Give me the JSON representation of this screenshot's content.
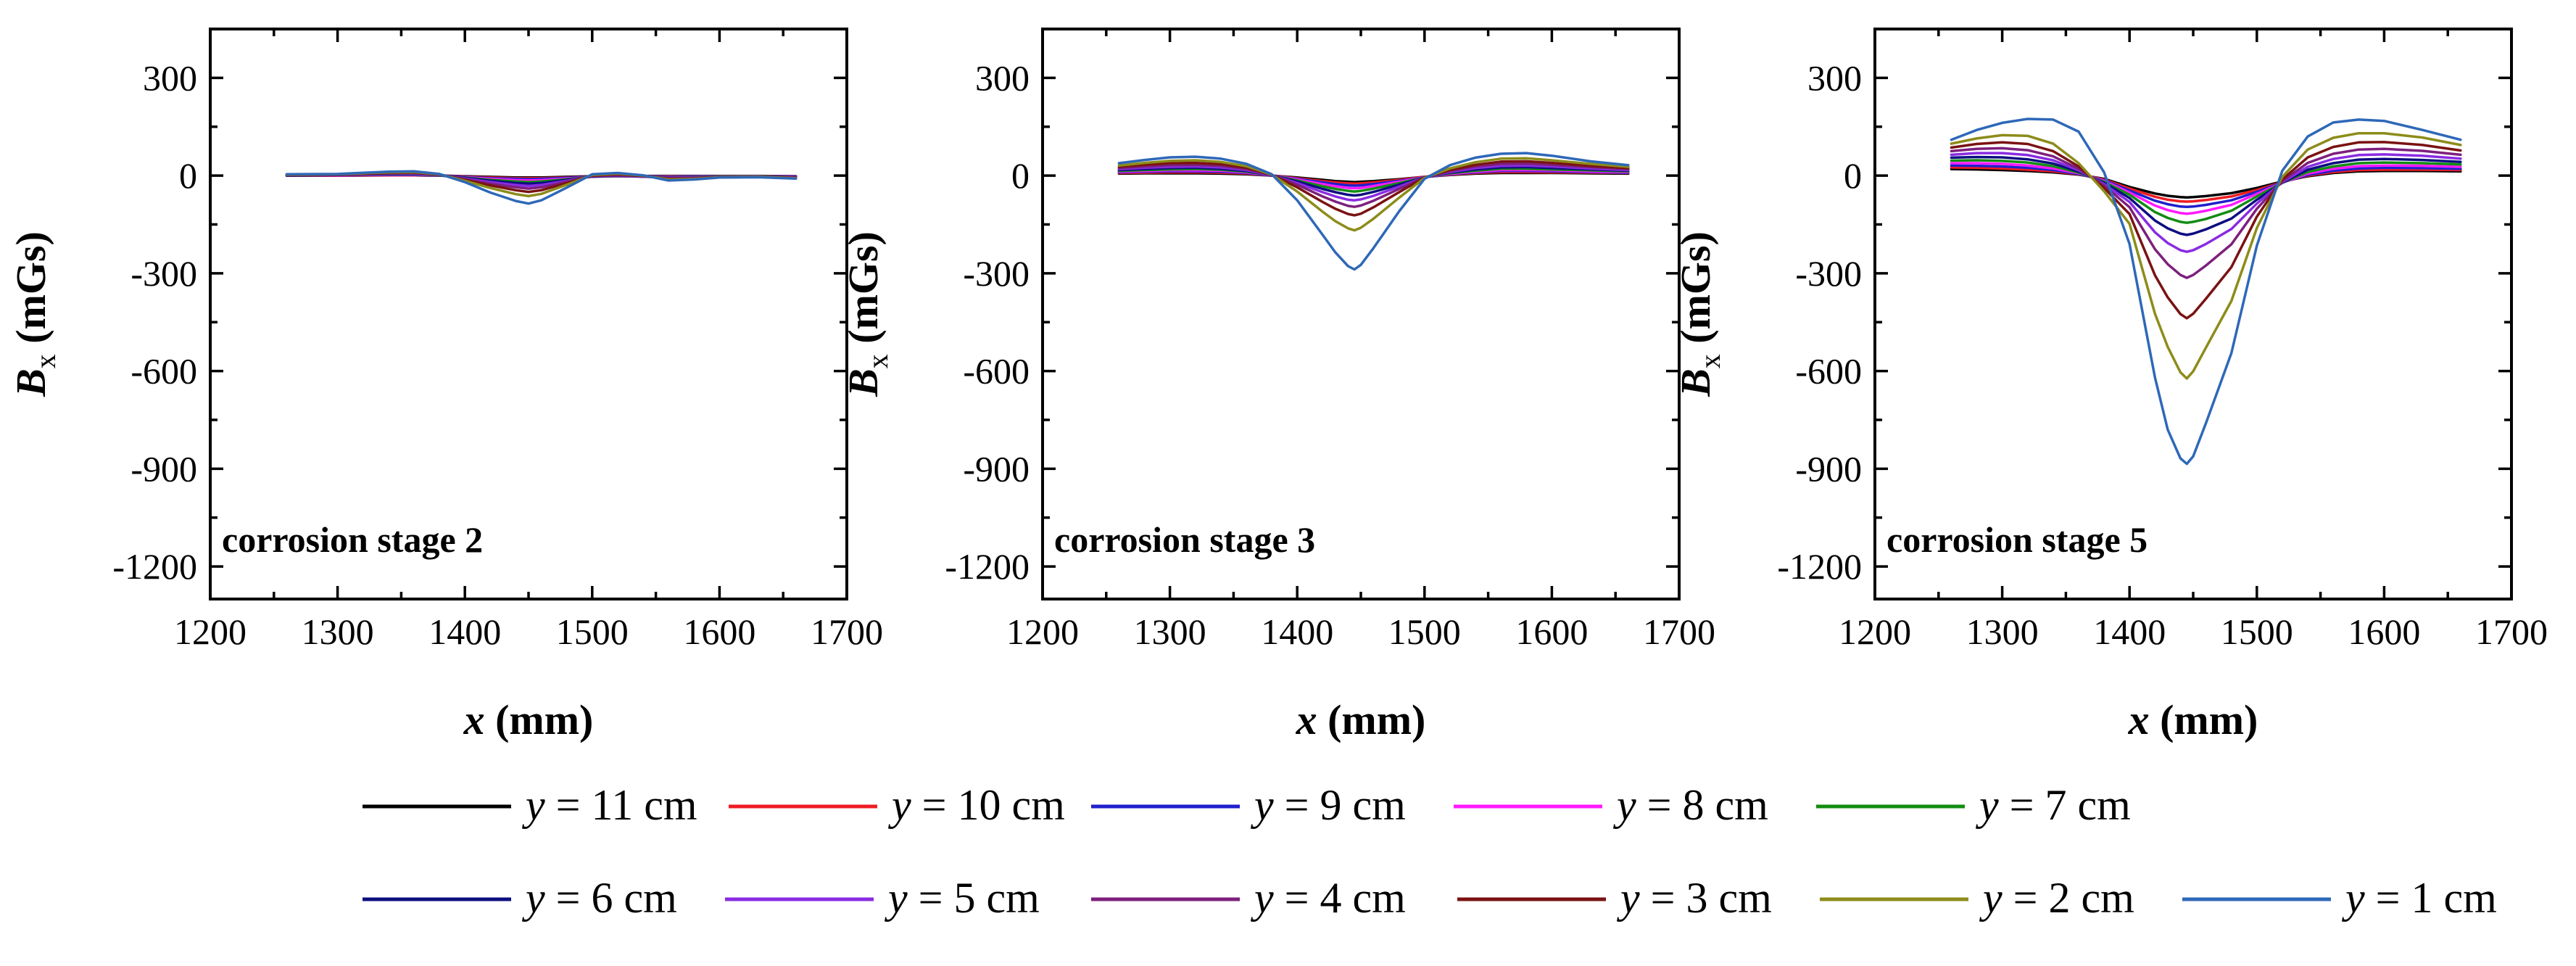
{
  "chart_data": [
    {
      "type": "line",
      "title": "",
      "annotation": "corrosion stage 2",
      "xlabel": "x (mm)",
      "ylabel": "Bx (mGs)",
      "xlim": [
        1200,
        1700
      ],
      "ylim": [
        -1300,
        450
      ],
      "xticks": [
        1200,
        1300,
        1400,
        1500,
        1600,
        1700
      ],
      "xtick_labels": [
        "1200",
        "1300",
        "1400",
        "1500",
        "1600",
        "1700"
      ],
      "yticks": [
        300,
        0,
        -300,
        -600,
        -900,
        -1200
      ],
      "ytick_labels": [
        "300",
        "0",
        "-300",
        "-600",
        "-900",
        "-1200"
      ],
      "x": [
        1260,
        1300,
        1340,
        1360,
        1380,
        1400,
        1420,
        1440,
        1450,
        1460,
        1480,
        1500,
        1520,
        1540,
        1560,
        1580,
        1600,
        1630,
        1660
      ],
      "series": [
        {
          "name": "y = 11 cm",
          "values": [
            0,
            0,
            1,
            1,
            0,
            -2,
            -4,
            -6,
            -6,
            -6,
            -4,
            -2,
            -1,
            -1,
            -1,
            -1,
            -1,
            -1,
            -2
          ]
        },
        {
          "name": "y = 10 cm",
          "values": [
            0,
            0,
            1,
            1,
            0,
            -3,
            -6,
            -8,
            -8,
            -8,
            -6,
            -3,
            -2,
            -2,
            -2,
            -2,
            -2,
            -2,
            -3
          ]
        },
        {
          "name": "y = 9 cm",
          "values": [
            0,
            1,
            2,
            2,
            0,
            -4,
            -8,
            -10,
            -11,
            -10,
            -7,
            -3,
            -2,
            -2,
            -3,
            -2,
            -2,
            -2,
            -3
          ]
        },
        {
          "name": "y = 8 cm",
          "values": [
            1,
            1,
            3,
            3,
            1,
            -5,
            -10,
            -14,
            -15,
            -14,
            -9,
            -3,
            -2,
            -3,
            -4,
            -3,
            -2,
            -2,
            -4
          ]
        },
        {
          "name": "y = 7 cm",
          "values": [
            1,
            2,
            4,
            4,
            1,
            -6,
            -13,
            -18,
            -20,
            -18,
            -11,
            -3,
            -1,
            -3,
            -5,
            -4,
            -2,
            -2,
            -5
          ]
        },
        {
          "name": "y = 6 cm",
          "values": [
            1,
            2,
            5,
            5,
            2,
            -7,
            -16,
            -23,
            -25,
            -23,
            -13,
            -3,
            0,
            -3,
            -6,
            -5,
            -3,
            -3,
            -5
          ]
        },
        {
          "name": "y = 5 cm",
          "values": [
            2,
            3,
            6,
            6,
            2,
            -9,
            -20,
            -29,
            -32,
            -29,
            -16,
            -2,
            1,
            -3,
            -7,
            -6,
            -3,
            -3,
            -6
          ]
        },
        {
          "name": "y = 4 cm",
          "values": [
            2,
            3,
            7,
            8,
            3,
            -11,
            -25,
            -36,
            -40,
            -36,
            -19,
            -1,
            2,
            -2,
            -8,
            -7,
            -4,
            -3,
            -6
          ]
        },
        {
          "name": "y = 3 cm",
          "values": [
            2,
            4,
            8,
            9,
            3,
            -13,
            -30,
            -45,
            -50,
            -45,
            -23,
            0,
            4,
            -1,
            -10,
            -9,
            -4,
            -4,
            -7
          ]
        },
        {
          "name": "y = 2 cm",
          "values": [
            3,
            4,
            10,
            11,
            4,
            -16,
            -38,
            -57,
            -63,
            -56,
            -28,
            2,
            6,
            0,
            -12,
            -10,
            -5,
            -4,
            -8
          ]
        },
        {
          "name": "y = 1 cm",
          "values": [
            4,
            5,
            12,
            13,
            5,
            -20,
            -52,
            -78,
            -86,
            -76,
            -37,
            4,
            8,
            1,
            -15,
            -12,
            -6,
            -5,
            -9
          ]
        }
      ]
    },
    {
      "type": "line",
      "title": "",
      "annotation": "corrosion stage 3",
      "xlabel": "x (mm)",
      "ylabel": "Bx (mGs)",
      "xlim": [
        1200,
        1700
      ],
      "ylim": [
        -1300,
        450
      ],
      "xticks": [
        1200,
        1300,
        1400,
        1500,
        1600,
        1700
      ],
      "xtick_labels": [
        "1200",
        "1300",
        "1400",
        "1500",
        "1600",
        "1700"
      ],
      "yticks": [
        300,
        0,
        -300,
        -600,
        -900,
        -1200
      ],
      "ytick_labels": [
        "300",
        "0",
        "-300",
        "-600",
        "-900",
        "-1200"
      ],
      "x": [
        1260,
        1280,
        1300,
        1320,
        1340,
        1360,
        1380,
        1400,
        1420,
        1430,
        1440,
        1445,
        1450,
        1460,
        1480,
        1500,
        1520,
        1540,
        1560,
        1580,
        1600,
        1630,
        1660
      ],
      "series": [
        {
          "name": "y = 11 cm",
          "values": [
            6,
            7,
            7,
            7,
            6,
            4,
            0,
            -6,
            -13,
            -17,
            -19,
            -20,
            -19,
            -17,
            -11,
            -4,
            2,
            6,
            8,
            8,
            8,
            7,
            6
          ]
        },
        {
          "name": "y = 10 cm",
          "values": [
            8,
            9,
            10,
            10,
            9,
            6,
            0,
            -8,
            -17,
            -21,
            -24,
            -25,
            -24,
            -21,
            -13,
            -4,
            3,
            8,
            11,
            11,
            10,
            9,
            8
          ]
        },
        {
          "name": "y = 9 cm",
          "values": [
            10,
            12,
            13,
            13,
            12,
            8,
            0,
            -10,
            -21,
            -26,
            -30,
            -31,
            -30,
            -26,
            -16,
            -5,
            4,
            10,
            14,
            14,
            13,
            11,
            9
          ]
        },
        {
          "name": "y = 8 cm",
          "values": [
            12,
            14,
            16,
            16,
            15,
            10,
            1,
            -12,
            -26,
            -33,
            -38,
            -39,
            -38,
            -32,
            -19,
            -5,
            5,
            12,
            17,
            17,
            16,
            13,
            11
          ]
        },
        {
          "name": "y = 7 cm",
          "values": [
            14,
            17,
            19,
            20,
            18,
            12,
            1,
            -15,
            -33,
            -41,
            -47,
            -49,
            -47,
            -40,
            -23,
            -5,
            7,
            15,
            21,
            21,
            19,
            16,
            13
          ]
        },
        {
          "name": "y = 6 cm",
          "values": [
            17,
            20,
            23,
            24,
            21,
            14,
            1,
            -18,
            -41,
            -51,
            -59,
            -61,
            -59,
            -50,
            -28,
            -5,
            9,
            19,
            25,
            26,
            23,
            19,
            15
          ]
        },
        {
          "name": "y = 5 cm",
          "values": [
            20,
            24,
            27,
            28,
            25,
            17,
            1,
            -23,
            -51,
            -64,
            -74,
            -76,
            -73,
            -62,
            -34,
            -5,
            11,
            23,
            30,
            31,
            28,
            22,
            17
          ]
        },
        {
          "name": "y = 4 cm",
          "values": [
            23,
            28,
            32,
            33,
            30,
            20,
            2,
            -28,
            -64,
            -80,
            -93,
            -96,
            -92,
            -77,
            -41,
            -5,
            14,
            28,
            36,
            37,
            33,
            26,
            20
          ]
        },
        {
          "name": "y = 3 cm",
          "values": [
            27,
            33,
            38,
            39,
            35,
            24,
            2,
            -36,
            -81,
            -102,
            -118,
            -122,
            -117,
            -97,
            -51,
            -6,
            17,
            33,
            43,
            44,
            39,
            30,
            23
          ]
        },
        {
          "name": "y = 2 cm",
          "values": [
            31,
            39,
            45,
            47,
            42,
            29,
            3,
            -49,
            -111,
            -140,
            -162,
            -168,
            -160,
            -132,
            -68,
            -7,
            22,
            41,
            52,
            53,
            47,
            36,
            27
          ]
        },
        {
          "name": "y = 1 cm",
          "values": [
            38,
            48,
            56,
            58,
            52,
            36,
            4,
            -76,
            -182,
            -236,
            -278,
            -288,
            -274,
            -222,
            -110,
            -10,
            32,
            55,
            67,
            69,
            61,
            44,
            32
          ]
        }
      ]
    },
    {
      "type": "line",
      "title": "",
      "annotation": "corrosion stage 5",
      "xlabel": "x (mm)",
      "ylabel": "Bx (mGs)",
      "xlim": [
        1200,
        1700
      ],
      "ylim": [
        -1300,
        450
      ],
      "xticks": [
        1200,
        1300,
        1400,
        1500,
        1600,
        1700
      ],
      "xtick_labels": [
        "1200",
        "1300",
        "1400",
        "1500",
        "1600",
        "1700"
      ],
      "yticks": [
        300,
        0,
        -300,
        -600,
        -900,
        -1200
      ],
      "ytick_labels": [
        "300",
        "0",
        "-300",
        "-600",
        "-900",
        "-1200"
      ],
      "x": [
        1260,
        1280,
        1300,
        1320,
        1340,
        1360,
        1380,
        1400,
        1420,
        1430,
        1440,
        1445,
        1450,
        1460,
        1480,
        1500,
        1520,
        1540,
        1560,
        1580,
        1600,
        1630,
        1660
      ],
      "series": [
        {
          "name": "y = 11 cm",
          "values": [
            20,
            19,
            17,
            14,
            10,
            3,
            -10,
            -35,
            -55,
            -62,
            -66,
            -67,
            -66,
            -63,
            -54,
            -38,
            -18,
            -2,
            8,
            13,
            14,
            14,
            13
          ]
        },
        {
          "name": "y = 10 cm",
          "values": [
            25,
            24,
            22,
            18,
            13,
            4,
            -12,
            -40,
            -65,
            -74,
            -79,
            -80,
            -79,
            -75,
            -64,
            -44,
            -20,
            0,
            11,
            17,
            18,
            18,
            17
          ]
        },
        {
          "name": "y = 9 cm",
          "values": [
            31,
            30,
            28,
            24,
            17,
            5,
            -14,
            -46,
            -77,
            -88,
            -95,
            -96,
            -95,
            -90,
            -76,
            -50,
            -21,
            2,
            15,
            22,
            24,
            23,
            21
          ]
        },
        {
          "name": "y = 8 cm",
          "values": [
            38,
            38,
            36,
            31,
            22,
            7,
            -16,
            -52,
            -92,
            -106,
            -115,
            -117,
            -115,
            -108,
            -90,
            -56,
            -22,
            6,
            21,
            29,
            31,
            30,
            27
          ]
        },
        {
          "name": "y = 7 cm",
          "values": [
            46,
            47,
            45,
            40,
            29,
            9,
            -19,
            -59,
            -112,
            -130,
            -142,
            -145,
            -142,
            -133,
            -108,
            -64,
            -22,
            11,
            28,
            38,
            40,
            38,
            34
          ]
        },
        {
          "name": "y = 6 cm",
          "values": [
            55,
            57,
            56,
            50,
            37,
            12,
            -22,
            -69,
            -138,
            -162,
            -178,
            -182,
            -178,
            -165,
            -132,
            -74,
            -22,
            18,
            38,
            49,
            51,
            48,
            42
          ]
        },
        {
          "name": "y = 5 cm",
          "values": [
            64,
            69,
            69,
            63,
            47,
            16,
            -26,
            -81,
            -174,
            -207,
            -229,
            -234,
            -229,
            -210,
            -164,
            -86,
            -20,
            27,
            51,
            63,
            65,
            61,
            52
          ]
        },
        {
          "name": "y = 4 cm",
          "values": [
            75,
            82,
            84,
            78,
            59,
            21,
            -31,
            -97,
            -226,
            -272,
            -305,
            -314,
            -305,
            -276,
            -211,
            -102,
            -17,
            39,
            67,
            80,
            82,
            76,
            64
          ]
        },
        {
          "name": "y = 3 cm",
          "values": [
            86,
            97,
            102,
            97,
            75,
            28,
            -38,
            -118,
            -306,
            -374,
            -425,
            -438,
            -424,
            -378,
            -281,
            -126,
            -12,
            56,
            88,
            102,
            103,
            94,
            77
          ]
        },
        {
          "name": "y = 2 cm",
          "values": [
            98,
            114,
            124,
            122,
            98,
            38,
            -48,
            -148,
            -424,
            -526,
            -604,
            -623,
            -601,
            -528,
            -385,
            -161,
            -4,
            80,
            116,
            130,
            130,
            117,
            94
          ]
        },
        {
          "name": "y = 1 cm",
          "values": [
            110,
            140,
            162,
            174,
            172,
            135,
            10,
            -210,
            -620,
            -780,
            -868,
            -885,
            -862,
            -760,
            -545,
            -215,
            15,
            120,
            163,
            172,
            168,
            140,
            110
          ]
        }
      ]
    }
  ],
  "series_colors": [
    "#000000",
    "#ee1c24",
    "#1f1fcc",
    "#ff1aff",
    "#128c12",
    "#0d0d80",
    "#8a2be2",
    "#7d1f7d",
    "#7a1212",
    "#8c8c1a",
    "#2e68b8"
  ],
  "legend": {
    "row1": [
      {
        "label_var": "y",
        "label_rest": " = 11 cm"
      },
      {
        "label_var": "y",
        "label_rest": " = 10 cm"
      },
      {
        "label_var": "y",
        "label_rest": " = 9 cm"
      },
      {
        "label_var": "y",
        "label_rest": " = 8 cm"
      },
      {
        "label_var": "y",
        "label_rest": " = 7 cm"
      }
    ],
    "row2": [
      {
        "label_var": "y",
        "label_rest": " = 6 cm"
      },
      {
        "label_var": "y",
        "label_rest": " = 5 cm"
      },
      {
        "label_var": "y",
        "label_rest": " = 4 cm"
      },
      {
        "label_var": "y",
        "label_rest": " = 3 cm"
      },
      {
        "label_var": "y",
        "label_rest": " = 2 cm"
      },
      {
        "label_var": "y",
        "label_rest": " = 1 cm"
      }
    ]
  },
  "axis_text": {
    "x_var": "x",
    "x_unit": " (mm)",
    "y_var": "B",
    "y_sub": "x",
    "y_unit": " (mGs)"
  }
}
